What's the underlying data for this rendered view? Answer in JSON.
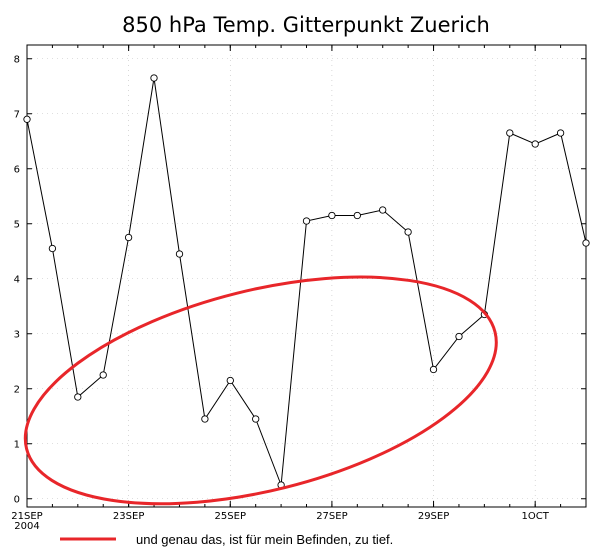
{
  "chart_data": {
    "type": "line",
    "title": "850 hPa Temp. Gitterpunkt Zuerich",
    "xlabel": "",
    "ylabel": "",
    "x_ticks": [
      {
        "label": "21SEP",
        "sub": "2004",
        "x": 0
      },
      {
        "label": "23SEP",
        "sub": "",
        "x": 2
      },
      {
        "label": "25SEP",
        "sub": "",
        "x": 4
      },
      {
        "label": "27SEP",
        "sub": "",
        "x": 6
      },
      {
        "label": "29SEP",
        "sub": "",
        "x": 8
      },
      {
        "label": "1OCT",
        "sub": "",
        "x": 10
      }
    ],
    "y_ticks": [
      0,
      1,
      2,
      3,
      4,
      5,
      6,
      7,
      8
    ],
    "xlim": [
      0,
      11
    ],
    "ylim": [
      -0.15,
      8.25
    ],
    "grid": true,
    "series": [
      {
        "x": [
          0,
          0.5,
          1,
          1.5,
          2,
          2.5,
          3,
          3.5,
          4,
          4.5,
          5,
          5.5,
          6,
          6.5,
          7,
          7.5,
          8,
          8.5,
          9,
          9.5,
          10,
          10.5,
          11
        ],
        "values": [
          6.9,
          4.55,
          1.85,
          2.25,
          4.75,
          7.65,
          4.45,
          1.45,
          2.15,
          1.45,
          0.25,
          5.05,
          5.15,
          5.15,
          5.25,
          4.85,
          2.35,
          2.95,
          3.35,
          6.65,
          6.45,
          6.65,
          4.65
        ],
        "color": "#000000"
      }
    ],
    "annotation": {
      "shape": "ellipse",
      "color": "#e8262a",
      "center": [
        4.6,
        1.97
      ],
      "semi_axes": [
        4.75,
        1.82
      ],
      "rotation_deg": -14
    },
    "legend": {
      "position": "bottom",
      "text": "und genau das, ist für mein Befinden, zu tief.",
      "color": "#e8262a"
    }
  }
}
